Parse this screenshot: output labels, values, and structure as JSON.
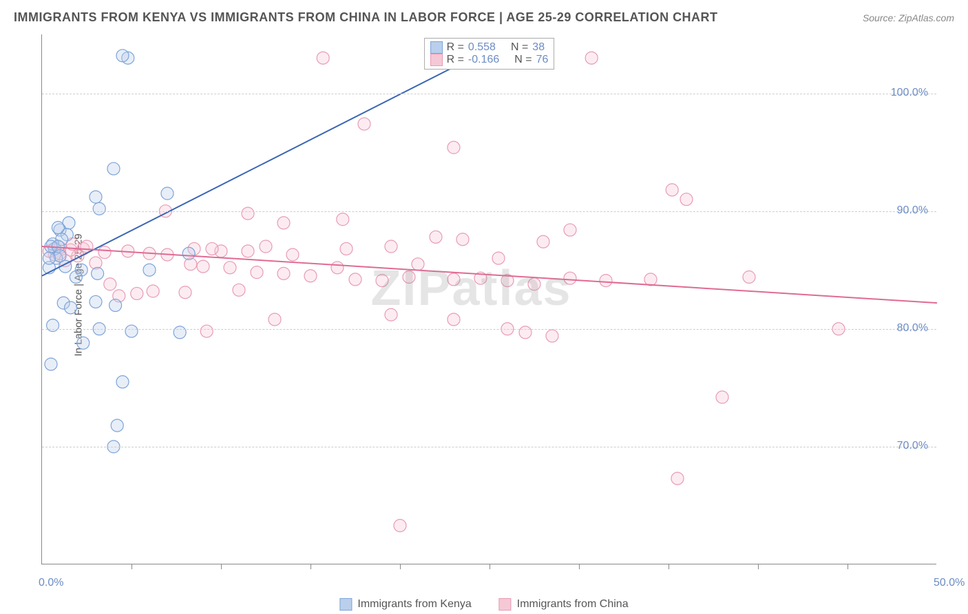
{
  "title": "IMMIGRANTS FROM KENYA VS IMMIGRANTS FROM CHINA IN LABOR FORCE | AGE 25-29 CORRELATION CHART",
  "source": "Source: ZipAtlas.com",
  "ylabel": "In Labor Force | Age 25-29",
  "watermark": "ZIPatlas",
  "chart": {
    "type": "scatter",
    "background_color": "#ffffff",
    "grid_color": "#cccccc",
    "axis_color": "#888888",
    "font_color_axis": "#6b8cc4",
    "xlim": [
      0,
      50
    ],
    "ylim": [
      60,
      105
    ],
    "xtick_labels": [
      {
        "v": 0,
        "label": "0.0%"
      },
      {
        "v": 50,
        "label": "50.0%"
      }
    ],
    "xtick_positions": [
      5,
      10,
      15,
      20,
      25,
      30,
      35,
      40,
      45
    ],
    "ytick_labels": [
      {
        "v": 70,
        "label": "70.0%"
      },
      {
        "v": 80,
        "label": "80.0%"
      },
      {
        "v": 90,
        "label": "90.0%"
      },
      {
        "v": 100,
        "label": "100.0%"
      }
    ],
    "ygrid_positions": [
      70,
      80,
      90,
      100
    ],
    "marker_radius": 9,
    "marker_opacity": 0.35,
    "marker_stroke_width": 1.2,
    "line_width": 2,
    "series": [
      {
        "name": "Immigrants from Kenya",
        "color": "#7da3d9",
        "fill": "#b9cfec",
        "R": "0.558",
        "N": "38",
        "trend": {
          "x1": 0,
          "y1": 84.5,
          "x2": 24,
          "y2": 103,
          "color": "#3a66b3"
        },
        "points": [
          [
            4.8,
            103
          ],
          [
            4.5,
            103.2
          ],
          [
            4.0,
            93.6
          ],
          [
            3.2,
            90.2
          ],
          [
            3.0,
            91.2
          ],
          [
            1.5,
            89.0
          ],
          [
            1.0,
            88.4
          ],
          [
            1.4,
            88.0
          ],
          [
            1.1,
            87.6
          ],
          [
            0.9,
            88.6
          ],
          [
            0.6,
            87.2
          ],
          [
            0.7,
            86.8
          ],
          [
            0.5,
            87.0
          ],
          [
            0.8,
            86.0
          ],
          [
            0.4,
            85.2
          ],
          [
            1.3,
            85.3
          ],
          [
            2.2,
            85.0
          ],
          [
            1.9,
            84.4
          ],
          [
            3.1,
            84.7
          ],
          [
            3.0,
            82.3
          ],
          [
            4.1,
            82.0
          ],
          [
            1.2,
            82.2
          ],
          [
            1.6,
            81.8
          ],
          [
            3.2,
            80.0
          ],
          [
            5.0,
            79.8
          ],
          [
            7.7,
            79.7
          ],
          [
            2.3,
            78.8
          ],
          [
            0.6,
            80.3
          ],
          [
            0.5,
            77.0
          ],
          [
            4.5,
            75.5
          ],
          [
            7.0,
            91.5
          ],
          [
            6.0,
            85.0
          ],
          [
            8.2,
            86.4
          ],
          [
            4.0,
            70.0
          ],
          [
            4.2,
            71.8
          ],
          [
            0.9,
            87.0
          ],
          [
            1.0,
            86.2
          ],
          [
            0.4,
            86.0
          ]
        ]
      },
      {
        "name": "Immigrants from China",
        "color": "#e89bb4",
        "fill": "#f5c8d6",
        "R": "-0.166",
        "N": "76",
        "trend": {
          "x1": 0,
          "y1": 87.0,
          "x2": 50,
          "y2": 82.2,
          "color": "#e06a94"
        },
        "points": [
          [
            15.7,
            103
          ],
          [
            22.5,
            103
          ],
          [
            24.0,
            103
          ],
          [
            30.7,
            103
          ],
          [
            18.0,
            97.4
          ],
          [
            23.0,
            95.4
          ],
          [
            6.9,
            90.0
          ],
          [
            11.5,
            89.8
          ],
          [
            16.8,
            89.3
          ],
          [
            13.5,
            89.0
          ],
          [
            29.5,
            88.4
          ],
          [
            35.2,
            91.8
          ],
          [
            36.0,
            91.0
          ],
          [
            22.0,
            87.8
          ],
          [
            23.5,
            87.6
          ],
          [
            28.0,
            87.4
          ],
          [
            19.5,
            87.0
          ],
          [
            17.0,
            86.8
          ],
          [
            14.0,
            86.3
          ],
          [
            10.0,
            86.6
          ],
          [
            8.5,
            86.8
          ],
          [
            7.0,
            86.3
          ],
          [
            6.0,
            86.4
          ],
          [
            4.8,
            86.6
          ],
          [
            3.5,
            86.5
          ],
          [
            3.0,
            85.6
          ],
          [
            2.3,
            86.8
          ],
          [
            2.0,
            86.2
          ],
          [
            1.6,
            86.7
          ],
          [
            1.3,
            85.8
          ],
          [
            1.0,
            86.4
          ],
          [
            9.0,
            85.3
          ],
          [
            9.5,
            86.8
          ],
          [
            10.5,
            85.2
          ],
          [
            12.0,
            84.8
          ],
          [
            13.5,
            84.7
          ],
          [
            15.0,
            84.5
          ],
          [
            16.5,
            85.2
          ],
          [
            11.0,
            83.3
          ],
          [
            8.0,
            83.1
          ],
          [
            6.2,
            83.2
          ],
          [
            5.3,
            83.0
          ],
          [
            4.3,
            82.8
          ],
          [
            17.5,
            84.2
          ],
          [
            19.0,
            84.1
          ],
          [
            20.5,
            84.4
          ],
          [
            23.0,
            84.2
          ],
          [
            24.5,
            84.3
          ],
          [
            26.0,
            84.1
          ],
          [
            27.5,
            83.8
          ],
          [
            29.5,
            84.3
          ],
          [
            31.5,
            84.1
          ],
          [
            19.5,
            81.2
          ],
          [
            23.0,
            80.8
          ],
          [
            27.0,
            79.7
          ],
          [
            28.5,
            79.4
          ],
          [
            26.0,
            80.0
          ],
          [
            13.0,
            80.8
          ],
          [
            9.2,
            79.8
          ],
          [
            21.0,
            85.5
          ],
          [
            34.0,
            84.2
          ],
          [
            39.5,
            84.4
          ],
          [
            44.5,
            80.0
          ],
          [
            38.0,
            74.2
          ],
          [
            35.5,
            67.3
          ],
          [
            20.0,
            63.3
          ],
          [
            3.8,
            83.8
          ],
          [
            2.5,
            87.0
          ],
          [
            1.7,
            87.2
          ],
          [
            1.0,
            86.9
          ],
          [
            0.7,
            86.3
          ],
          [
            0.4,
            86.6
          ],
          [
            11.5,
            86.6
          ],
          [
            12.5,
            87.0
          ],
          [
            25.5,
            86.0
          ],
          [
            8.3,
            85.5
          ]
        ]
      }
    ]
  },
  "legend": {
    "r_label": "R =",
    "n_label": "N ="
  }
}
